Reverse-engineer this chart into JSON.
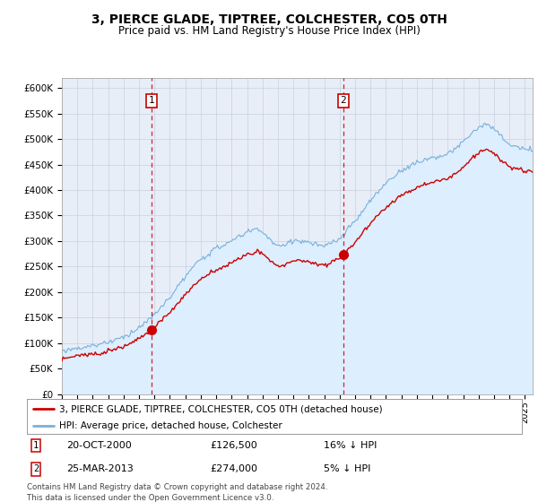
{
  "title": "3, PIERCE GLADE, TIPTREE, COLCHESTER, CO5 0TH",
  "subtitle": "Price paid vs. HM Land Registry's House Price Index (HPI)",
  "ylabel_ticks": [
    "£0",
    "£50K",
    "£100K",
    "£150K",
    "£200K",
    "£250K",
    "£300K",
    "£350K",
    "£400K",
    "£450K",
    "£500K",
    "£550K",
    "£600K"
  ],
  "ylim": [
    0,
    620000
  ],
  "ytick_vals": [
    0,
    50000,
    100000,
    150000,
    200000,
    250000,
    300000,
    350000,
    400000,
    450000,
    500000,
    550000,
    600000
  ],
  "sale1_date": 2000.8,
  "sale1_price": 126500,
  "sale2_date": 2013.23,
  "sale2_price": 274000,
  "hpi_line_color": "#7ab0d8",
  "hpi_fill_color": "#ddeeff",
  "price_color": "#cc0000",
  "vline_color": "#cc0000",
  "background_color": "#e8eef8",
  "grid_color": "#c8d0e0",
  "legend1_text": "3, PIERCE GLADE, TIPTREE, COLCHESTER, CO5 0TH (detached house)",
  "legend2_text": "HPI: Average price, detached house, Colchester",
  "footnote": "Contains HM Land Registry data © Crown copyright and database right 2024.\nThis data is licensed under the Open Government Licence v3.0.",
  "xmin": 1995,
  "xmax": 2025.5
}
